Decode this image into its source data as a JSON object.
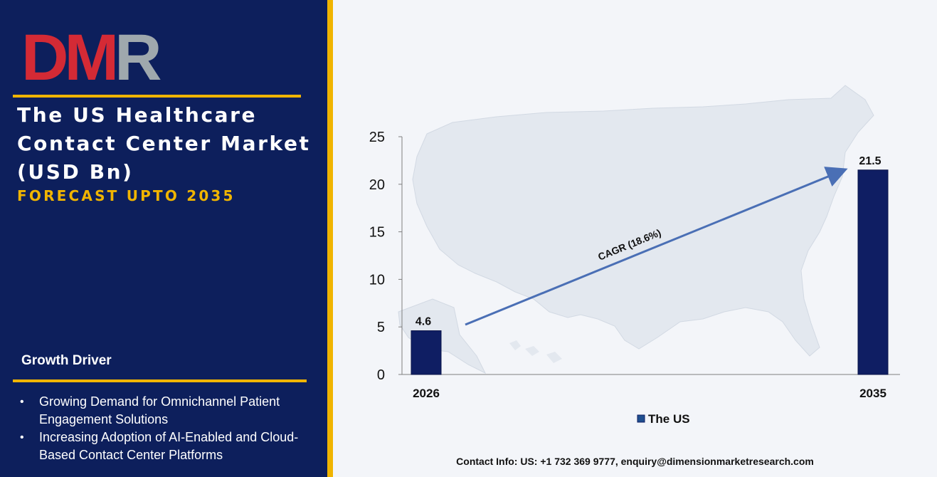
{
  "brand": {
    "logo_text": "DMR",
    "colors": {
      "logo_red": "#d42a35",
      "logo_gray": "#9fa8ad",
      "panel_bg": "#0d1f5c",
      "accent_gold": "#f0b400"
    }
  },
  "report": {
    "title": "The US Healthcare Contact Center Market (USD Bn)",
    "subtitle": "FORECAST UPTO 2035"
  },
  "growth_driver": {
    "heading": "Growth Driver",
    "items": [
      "Growing Demand for Omnichannel Patient Engagement Solutions",
      "Increasing Adoption of AI-Enabled and Cloud-Based Contact Center Platforms"
    ]
  },
  "chart_data": {
    "type": "bar",
    "categories": [
      "2026",
      "2035"
    ],
    "series": [
      {
        "name": "The US",
        "values": [
          4.6,
          21.5
        ],
        "color": "#0f1e63"
      }
    ],
    "data_labels": [
      "4.6",
      "21.5"
    ],
    "ylim": [
      0,
      25
    ],
    "yticks": [
      0,
      5,
      10,
      15,
      20,
      25
    ],
    "grid": false,
    "legend_position": "bottom",
    "annotation": "CAGR (18.6%)",
    "background": "map of the United States"
  },
  "footer": {
    "contact": "Contact Info: US: +1 732 369 9777, enquiry@dimensionmarketresearch.com"
  }
}
